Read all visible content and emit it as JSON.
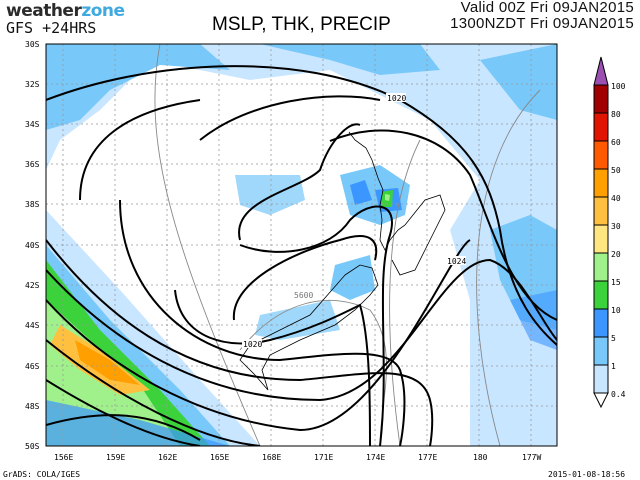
{
  "header": {
    "logo_text_1": "weather",
    "logo_text_2": "zone",
    "model": "GFS +24HRS",
    "title": "MSLP, THK, PRECIP",
    "valid_utc": "Valid 00Z Fri 09JAN2015",
    "valid_local": "1300NZDT Fri 09JAN2015"
  },
  "map": {
    "lat_labels": [
      "30S",
      "32S",
      "34S",
      "36S",
      "38S",
      "40S",
      "42S",
      "44S",
      "46S",
      "48S",
      "50S"
    ],
    "lon_labels": [
      "156E",
      "159E",
      "162E",
      "165E",
      "168E",
      "171E",
      "174E",
      "177E",
      "180",
      "177W"
    ],
    "isobar_labels": [
      "1020",
      "1024",
      "1020"
    ],
    "thickness_label": "5600",
    "colors": {
      "isobar": "#000000",
      "thickness": "#888888",
      "grid": "#999999"
    }
  },
  "colorbar": {
    "labels": [
      "100",
      "80",
      "60",
      "50",
      "40",
      "30",
      "20",
      "15",
      "10",
      "5",
      "1",
      "0.4"
    ],
    "colors": [
      "#9b4fb0",
      "#a00000",
      "#e01400",
      "#ff5a00",
      "#ffa000",
      "#ffc040",
      "#ffe680",
      "#a0f08c",
      "#3cd23c",
      "#3c96ff",
      "#78c8fa",
      "#c8e6ff"
    ]
  },
  "footer": {
    "credit": "GrADS: COLA/IGES",
    "timestamp": "2015-01-08-18:56"
  }
}
